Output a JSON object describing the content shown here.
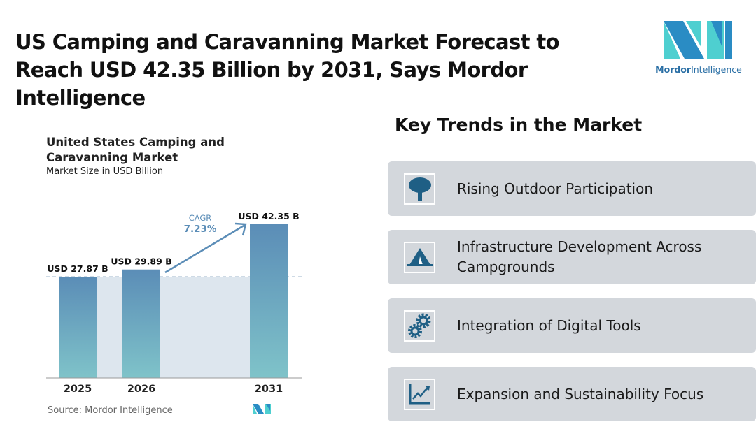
{
  "title": "US Camping and Caravanning Market Forecast to Reach USD 42.35 Billion by 2031, Says Mordor Intelligence",
  "logo": {
    "text_bold": "Mordor",
    "text_light": "Intelligence"
  },
  "chart_data": {
    "type": "bar",
    "title": "United States Camping and Caravanning Market",
    "subtitle": "Market Size in USD Billion",
    "categories": [
      "2025",
      "2026",
      "2031"
    ],
    "values": [
      27.87,
      29.89,
      42.35
    ],
    "data_labels": [
      "USD 27.87 B",
      "USD 29.89 B",
      "USD 42.35 B"
    ],
    "annotation": {
      "label": "CAGR",
      "value": "7.23%"
    },
    "ylim": [
      0,
      42.35
    ],
    "source": "Source:  Mordor Intelligence",
    "colors": {
      "bar_top": "#5b8db7",
      "bar_bottom": "#7fc3c9",
      "band": "#dde6ee",
      "arrow": "#5b8db7"
    }
  },
  "trends": {
    "title": "Key Trends in the Market",
    "items": [
      {
        "label": "Rising Outdoor Participation",
        "icon": "tree-icon"
      },
      {
        "label": "Infrastructure Development Across Campgrounds",
        "icon": "tent-icon"
      },
      {
        "label": "Integration of Digital Tools",
        "icon": "gears-icon"
      },
      {
        "label": "Expansion and Sustainability Focus",
        "icon": "growth-chart-icon"
      }
    ]
  },
  "accent": "#1f5f85"
}
